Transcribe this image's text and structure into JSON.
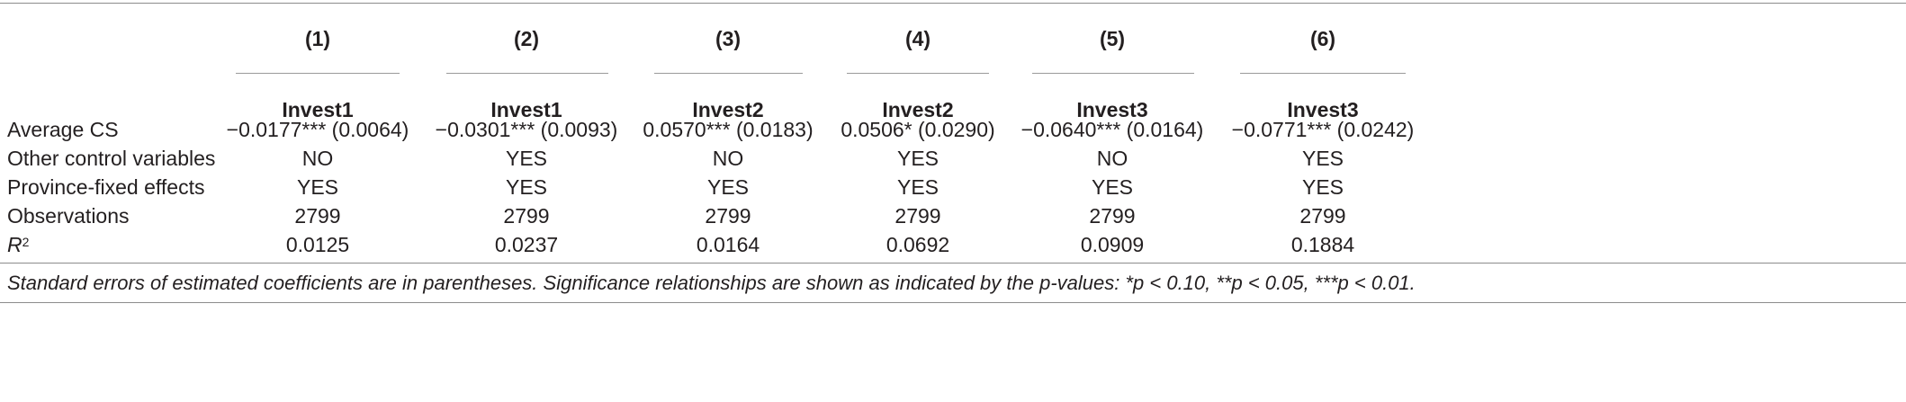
{
  "columns": [
    {
      "num": "(1)",
      "dep": "Invest1"
    },
    {
      "num": "(2)",
      "dep": "Invest1"
    },
    {
      "num": "(3)",
      "dep": "Invest2"
    },
    {
      "num": "(4)",
      "dep": "Invest2"
    },
    {
      "num": "(5)",
      "dep": "Invest3"
    },
    {
      "num": "(6)",
      "dep": "Invest3"
    }
  ],
  "rows": [
    {
      "label": "Average CS",
      "cells": [
        "−0.0177*** (0.0064)",
        "−0.0301*** (0.0093)",
        "0.0570*** (0.0183)",
        "0.0506* (0.0290)",
        "−0.0640*** (0.0164)",
        "−0.0771*** (0.0242)"
      ]
    },
    {
      "label": "Other control variables",
      "cells": [
        "NO",
        "YES",
        "NO",
        "YES",
        "NO",
        "YES"
      ]
    },
    {
      "label": "Province-fixed effects",
      "cells": [
        "YES",
        "YES",
        "YES",
        "YES",
        "YES",
        "YES"
      ]
    },
    {
      "label": "Observations",
      "cells": [
        "2799",
        "2799",
        "2799",
        "2799",
        "2799",
        "2799"
      ]
    },
    {
      "label_base": "R",
      "label_sup": "2",
      "cells": [
        "0.0125",
        "0.0237",
        "0.0164",
        "0.0692",
        "0.0909",
        "0.1884"
      ]
    }
  ],
  "note": "Standard errors of estimated coefficients are in parentheses. Significance relationships are shown as indicated by the p-values: *p < 0.10, **p < 0.05, ***p < 0.01."
}
